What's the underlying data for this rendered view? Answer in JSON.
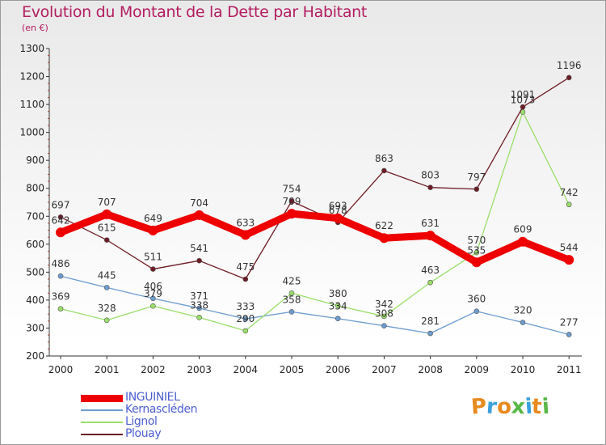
{
  "page": {
    "title": "Evolution du Montant de la Dette par Habitant",
    "unit": "(en €)",
    "brand": "Proxiti",
    "brand_colors": [
      "#e88a1f",
      "#3aa0dd",
      "#e88a1f",
      "#57b846",
      "#3aa0dd",
      "#e88a1f",
      "#57b846"
    ]
  },
  "chart_data": {
    "type": "line",
    "title": "Evolution du Montant de la Dette par Habitant",
    "ylabel": "(en €)",
    "xlabel": "",
    "x": [
      "2000",
      "2001",
      "2002",
      "2003",
      "2004",
      "2005",
      "2006",
      "2007",
      "2008",
      "2009",
      "2010",
      "2011"
    ],
    "ylim": [
      200,
      1300
    ],
    "yticks": [
      200,
      300,
      400,
      500,
      600,
      700,
      800,
      900,
      1000,
      1100,
      1200,
      1300
    ],
    "grid": false,
    "legend_position": "bottom-left",
    "series": [
      {
        "name": "INGUINIEL",
        "color": "#ee0000",
        "values": [
          642,
          707,
          649,
          704,
          633,
          709,
          693,
          622,
          631,
          535,
          609,
          544
        ]
      },
      {
        "name": "Kernascléden",
        "color": "#6d9ccf",
        "values": [
          486,
          445,
          406,
          371,
          333,
          358,
          334,
          308,
          281,
          360,
          320,
          277
        ]
      },
      {
        "name": "Lignol",
        "color": "#9bde6a",
        "values": [
          369,
          328,
          379,
          338,
          290,
          425,
          380,
          342,
          463,
          570,
          1073,
          742
        ]
      },
      {
        "name": "Plouay",
        "color": "#6e1b25",
        "values": [
          697,
          615,
          511,
          541,
          475,
          754,
          678,
          863,
          803,
          797,
          1091,
          1196
        ]
      }
    ]
  }
}
